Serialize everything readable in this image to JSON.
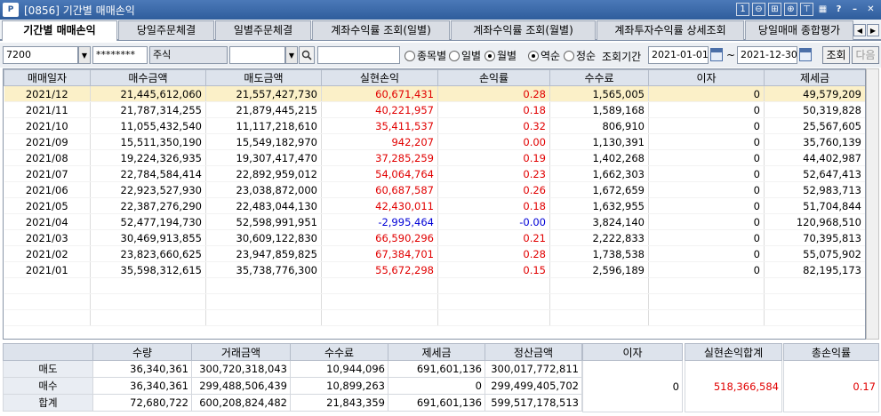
{
  "window": {
    "logo": "P",
    "title": "[0856] 기간별 매매손익",
    "controls": [
      {
        "name": "num-one-icon",
        "glyph": "1"
      },
      {
        "name": "zoom-out-icon",
        "glyph": "⊖"
      },
      {
        "name": "plus-box-icon",
        "glyph": "⊞"
      },
      {
        "name": "zoom-in-icon",
        "glyph": "⊕"
      },
      {
        "name": "pin-icon",
        "glyph": "⊤"
      },
      {
        "name": "grid-icon",
        "glyph": "▦"
      },
      {
        "name": "help-icon",
        "glyph": "?"
      },
      {
        "name": "minimize-icon",
        "glyph": "–"
      },
      {
        "name": "close-icon",
        "glyph": "✕"
      }
    ]
  },
  "tabs": [
    "기간별 매매손익",
    "당일주문체결",
    "일별주문체결",
    "계좌수익률 조회(일별)",
    "계좌수익률 조회(월별)",
    "계좌투자수익률 상세조회",
    "당일매매 종합평가"
  ],
  "toolbar": {
    "account_prefix": "7200",
    "account_masked": "********",
    "account_type": "주식",
    "stock_code": "",
    "stock_name": "",
    "radio_group1": [
      {
        "label": "종목별",
        "checked": false
      },
      {
        "label": "일별",
        "checked": false
      },
      {
        "label": "월별",
        "checked": true
      }
    ],
    "radio_group2": [
      {
        "label": "역순",
        "checked": true
      },
      {
        "label": "정순",
        "checked": false
      }
    ],
    "period_label": "조회기간",
    "date_from": "2021-01-01",
    "date_sep": "~",
    "date_to": "2021-12-30",
    "search_label": "조회",
    "next_label": "다음"
  },
  "grid": {
    "columns": [
      "매매일자",
      "매수금액",
      "매도금액",
      "실현손익",
      "손익률",
      "수수료",
      "이자",
      "제세금"
    ],
    "rows": [
      [
        "2021/12",
        "21,445,612,060",
        "21,557,427,730",
        "60,671,431",
        "0.28",
        "1,565,005",
        "0",
        "49,579,209"
      ],
      [
        "2021/11",
        "21,787,314,255",
        "21,879,445,215",
        "40,221,957",
        "0.18",
        "1,589,168",
        "0",
        "50,319,828"
      ],
      [
        "2021/10",
        "11,055,432,540",
        "11,117,218,610",
        "35,411,537",
        "0.32",
        "806,910",
        "0",
        "25,567,605"
      ],
      [
        "2021/09",
        "15,511,350,190",
        "15,549,182,970",
        "942,207",
        "0.00",
        "1,130,391",
        "0",
        "35,760,139"
      ],
      [
        "2021/08",
        "19,224,326,935",
        "19,307,417,470",
        "37,285,259",
        "0.19",
        "1,402,268",
        "0",
        "44,402,987"
      ],
      [
        "2021/07",
        "22,784,584,414",
        "22,892,959,012",
        "54,064,764",
        "0.23",
        "1,662,303",
        "0",
        "52,647,413"
      ],
      [
        "2021/06",
        "22,923,527,930",
        "23,038,872,000",
        "60,687,587",
        "0.26",
        "1,672,659",
        "0",
        "52,983,713"
      ],
      [
        "2021/05",
        "22,387,276,290",
        "22,483,044,130",
        "42,430,011",
        "0.18",
        "1,632,955",
        "0",
        "51,704,844"
      ],
      [
        "2021/04",
        "52,477,194,730",
        "52,598,991,951",
        "-2,995,464",
        "-0.00",
        "3,824,140",
        "0",
        "120,968,510"
      ],
      [
        "2021/03",
        "30,469,913,855",
        "30,609,122,830",
        "66,590,296",
        "0.21",
        "2,222,833",
        "0",
        "70,395,813"
      ],
      [
        "2021/02",
        "23,823,660,625",
        "23,947,859,825",
        "67,384,701",
        "0.28",
        "1,738,538",
        "0",
        "55,075,902"
      ],
      [
        "2021/01",
        "35,598,312,615",
        "35,738,776,300",
        "55,672,298",
        "0.15",
        "2,596,189",
        "0",
        "82,195,173"
      ]
    ]
  },
  "summary": {
    "columns": [
      "",
      "수량",
      "거래금액",
      "수수료",
      "제세금",
      "정산금액"
    ],
    "rows": [
      [
        "매도",
        "36,340,361",
        "300,720,318,043",
        "10,944,096",
        "691,601,136",
        "300,017,772,811"
      ],
      [
        "매수",
        "36,340,361",
        "299,488,506,439",
        "10,899,263",
        "0",
        "299,499,405,702"
      ],
      [
        "합계",
        "72,680,722",
        "600,208,824,482",
        "21,843,359",
        "691,601,136",
        "599,517,178,513"
      ]
    ],
    "interest_label": "이자",
    "interest_value": "0",
    "realized_total_label": "실현손익합계",
    "realized_total_value": "518,366,584",
    "total_rate_label": "총손익률",
    "total_rate_value": "0.17"
  },
  "colors": {
    "profit": "#e10000",
    "loss": "#0000d6",
    "selected_row": "#fbf0c8",
    "header_bg": "#dde3ec",
    "titlebar": "#2f5d9c"
  }
}
